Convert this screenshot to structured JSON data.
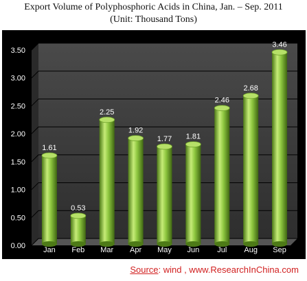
{
  "title_line1": "Export Volume of Polyphosphoric Acids in China, Jan. – Sep. 2011",
  "title_line2": "(Unit: Thousand Tons)",
  "source": {
    "label": "Source",
    "text": ": wind , www.ResearchInChina.com"
  },
  "colors": {
    "background": "#000000",
    "wall": "#3c3c3c",
    "floor": "#555555",
    "bar_light": "#c6ec78",
    "bar_mid": "#8dc63f",
    "bar_dark": "#4d7a17",
    "text": "#ffffff",
    "source": "#d11f1f"
  },
  "chart_data": {
    "type": "bar",
    "title": "Export Volume of Polyphosphoric Acids in China, Jan. – Sep. 2011",
    "subtitle": "(Unit: Thousand Tons)",
    "categories": [
      "Jan",
      "Feb",
      "Mar",
      "Apr",
      "May",
      "Jun",
      "Jul",
      "Aug",
      "Sep"
    ],
    "values": [
      1.61,
      0.53,
      2.25,
      1.92,
      1.77,
      1.81,
      2.46,
      2.68,
      3.46
    ],
    "value_labels": [
      "1.61",
      "0.53",
      "2.25",
      "1.92",
      "1.77",
      "1.81",
      "2.46",
      "2.68",
      "3.46"
    ],
    "ylim": [
      0,
      3.5
    ],
    "yticks": [
      "0.00",
      "0.50",
      "1.00",
      "1.50",
      "2.00",
      "2.50",
      "3.00",
      "3.50"
    ],
    "grid": true,
    "legend": false,
    "style": "3d-cylinder"
  }
}
